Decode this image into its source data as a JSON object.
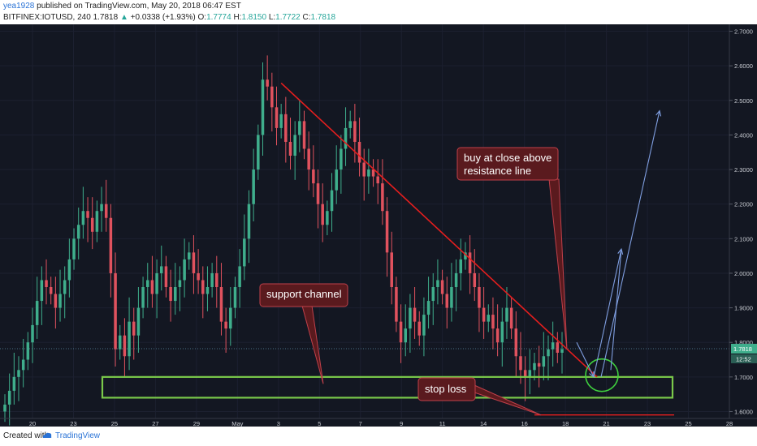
{
  "header": {
    "username": "yea1928",
    "published_text": "published on TradingView.com, May 20, 2018 06:47 EST",
    "symbol": "BITFINEX:IOTUSD, 240",
    "last": "1.7818",
    "change": "+0.0338 (+1.93%)",
    "open_label": "O:",
    "open": "1.7774",
    "high_label": "H:",
    "high": "1.8150",
    "low_label": "L:",
    "low": "1.7722",
    "close_label": "C:",
    "close": "1.7818"
  },
  "footer": {
    "created_with": "Created with",
    "brand": "TradingView"
  },
  "colors": {
    "background": "#131722",
    "up": "#3fae8c",
    "down": "#e0525e",
    "resistance_line": "#e61e1e",
    "support_box": "#7ac94a",
    "projection": "#7f9ee0",
    "annotation_bg": "#5a1a1e",
    "annotation_border": "#c0404a",
    "circle": "#3fd13f"
  },
  "price_label": {
    "value": "1.7818",
    "countdown": "12:52"
  },
  "annotations": {
    "buy": [
      "buy at close above",
      "resistance line"
    ],
    "support": "support channel",
    "stop": "stop loss"
  },
  "chart_data": {
    "type": "candlestick",
    "title": "BITFINEX:IOTUSD, 240",
    "x_ticks": [
      "20",
      "23",
      "25",
      "27",
      "29",
      "May",
      "3",
      "5",
      "7",
      "9",
      "11",
      "14",
      "16",
      "18",
      "21",
      "23",
      "25",
      "28"
    ],
    "y_ticks": [
      "2.7000",
      "2.6000",
      "2.5000",
      "2.4000",
      "2.3000",
      "2.2000",
      "2.1000",
      "2.0000",
      "1.9000",
      "1.8000",
      "1.7000",
      "1.6000"
    ],
    "ylim": [
      1.58,
      2.72
    ],
    "last_price": 1.7818,
    "resistance_line": {
      "from": 2.55,
      "to": 1.7
    },
    "support_channel": [
      1.64,
      1.7
    ],
    "stop_loss": 1.59,
    "closes": [
      1.62,
      1.66,
      1.7,
      1.72,
      1.75,
      1.8,
      1.85,
      1.92,
      1.98,
      1.96,
      1.94,
      1.9,
      1.94,
      1.98,
      2.04,
      2.1,
      2.14,
      2.18,
      2.16,
      2.12,
      2.18,
      2.2,
      2.16,
      2.0,
      1.78,
      1.82,
      1.76,
      1.86,
      1.82,
      1.9,
      1.96,
      1.98,
      1.94,
      2.0,
      2.02,
      1.96,
      1.92,
      1.96,
      1.98,
      2.04,
      2.06,
      2.0,
      1.98,
      1.94,
      1.96,
      2.0,
      1.96,
      1.86,
      1.84,
      1.9,
      1.96,
      2.02,
      2.1,
      2.2,
      2.3,
      2.4,
      2.56,
      2.54,
      2.48,
      2.42,
      2.46,
      2.38,
      2.34,
      2.4,
      2.44,
      2.36,
      2.3,
      2.26,
      2.2,
      2.14,
      2.18,
      2.24,
      2.3,
      2.36,
      2.42,
      2.44,
      2.38,
      2.32,
      2.28,
      2.3,
      2.28,
      2.26,
      2.18,
      2.06,
      1.96,
      1.86,
      1.8,
      1.84,
      1.9,
      1.86,
      1.82,
      1.88,
      1.92,
      1.96,
      1.98,
      1.94,
      1.9,
      1.96,
      2.0,
      2.04,
      2.06,
      2.0,
      1.96,
      1.9,
      1.86,
      1.88,
      1.84,
      1.8,
      1.86,
      1.9,
      1.84,
      1.76,
      1.72,
      1.7,
      1.72,
      1.74,
      1.73,
      1.76,
      1.78,
      1.8,
      1.77,
      1.78
    ]
  }
}
